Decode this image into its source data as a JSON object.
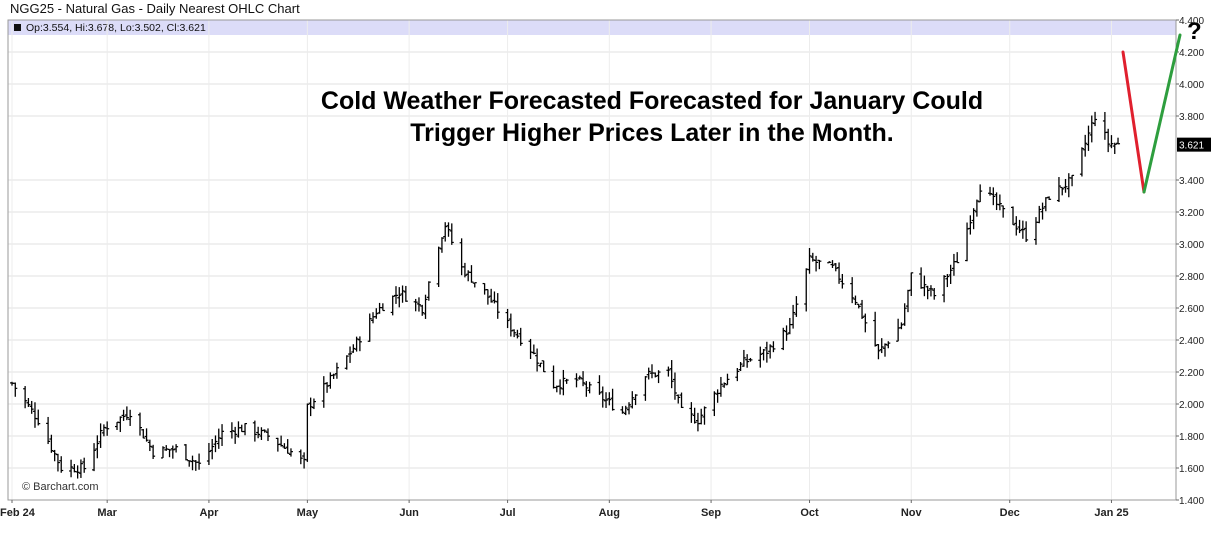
{
  "header": {
    "title": "NGG25 - Natural Gas - Daily Nearest OHLC Chart",
    "ohlc_readout": "Op:3.554, Hi:3.678, Lo:3.502, Cl:3.621"
  },
  "annotation": {
    "line1": "Cold Weather Forecasted Forecasted for January Could",
    "line2": "Trigger Higher Prices Later in the Month.",
    "question_mark": "?",
    "arrow_down_color": "#e0202e",
    "arrow_up_color": "#2e9e3e"
  },
  "watermark": "© Barchart.com",
  "colors": {
    "bars": "#000000",
    "grid": "#d8d8d8",
    "header_band": "#dcdcf8",
    "last_price_bg": "#000000"
  },
  "chart_data": {
    "type": "ohlc",
    "title": "NGG25 - Natural Gas - Daily Nearest OHLC Chart",
    "y_axis": {
      "position": "right",
      "ticks": [
        "4.400",
        "4.200",
        "4.000",
        "3.800",
        "3.621",
        "3.400",
        "3.200",
        "3.000",
        "2.800",
        "2.600",
        "2.400",
        "2.200",
        "2.000",
        "1.800",
        "1.600",
        "1.400"
      ]
    },
    "ylim": [
      1.4,
      4.4
    ],
    "x_labels": [
      "Feb 24",
      "Mar",
      "Apr",
      "May",
      "Jun",
      "Jul",
      "Aug",
      "Sep",
      "Oct",
      "Nov",
      "Dec",
      "Jan 25"
    ],
    "x_range": [
      "2024-02-01",
      "2025-01-10"
    ],
    "last_price": "3.621",
    "grid": true,
    "closes": [
      [
        "2024-02-01",
        2.13
      ],
      [
        "2024-02-09",
        1.9
      ],
      [
        "2024-02-16",
        1.6
      ],
      [
        "2024-02-23",
        1.6
      ],
      [
        "2024-02-29",
        1.85
      ],
      [
        "2024-03-08",
        1.95
      ],
      [
        "2024-03-15",
        1.7
      ],
      [
        "2024-03-22",
        1.72
      ],
      [
        "2024-03-29",
        1.62
      ],
      [
        "2024-04-05",
        1.82
      ],
      [
        "2024-04-12",
        1.85
      ],
      [
        "2024-04-19",
        1.8
      ],
      [
        "2024-04-26",
        1.7
      ],
      [
        "2024-04-30",
        1.63
      ],
      [
        "2024-05-01",
        1.98
      ],
      [
        "2024-05-08",
        2.15
      ],
      [
        "2024-05-15",
        2.35
      ],
      [
        "2024-05-22",
        2.58
      ],
      [
        "2024-05-29",
        2.7
      ],
      [
        "2024-06-05",
        2.6
      ],
      [
        "2024-06-10",
        3.0
      ],
      [
        "2024-06-12",
        3.12
      ],
      [
        "2024-06-17",
        2.85
      ],
      [
        "2024-06-24",
        2.7
      ],
      [
        "2024-07-01",
        2.5
      ],
      [
        "2024-07-08",
        2.34
      ],
      [
        "2024-07-15",
        2.12
      ],
      [
        "2024-07-22",
        2.15
      ],
      [
        "2024-07-29",
        2.05
      ],
      [
        "2024-08-05",
        1.95
      ],
      [
        "2024-08-12",
        2.18
      ],
      [
        "2024-08-19",
        2.2
      ],
      [
        "2024-08-23",
        1.95
      ],
      [
        "2024-08-28",
        1.9
      ],
      [
        "2024-09-04",
        2.12
      ],
      [
        "2024-09-11",
        2.26
      ],
      [
        "2024-09-18",
        2.33
      ],
      [
        "2024-09-25",
        2.48
      ],
      [
        "2024-10-01",
        2.9
      ],
      [
        "2024-10-08",
        2.85
      ],
      [
        "2024-10-15",
        2.65
      ],
      [
        "2024-10-22",
        2.32
      ],
      [
        "2024-10-29",
        2.5
      ],
      [
        "2024-11-01",
        2.8
      ],
      [
        "2024-11-08",
        2.68
      ],
      [
        "2024-11-15",
        2.9
      ],
      [
        "2024-11-22",
        3.36
      ],
      [
        "2024-11-29",
        3.2
      ],
      [
        "2024-12-06",
        3.05
      ],
      [
        "2024-12-13",
        3.3
      ],
      [
        "2024-12-20",
        3.4
      ],
      [
        "2024-12-27",
        3.8
      ],
      [
        "2024-12-31",
        3.63
      ],
      [
        "2025-01-03",
        3.621
      ]
    ]
  }
}
